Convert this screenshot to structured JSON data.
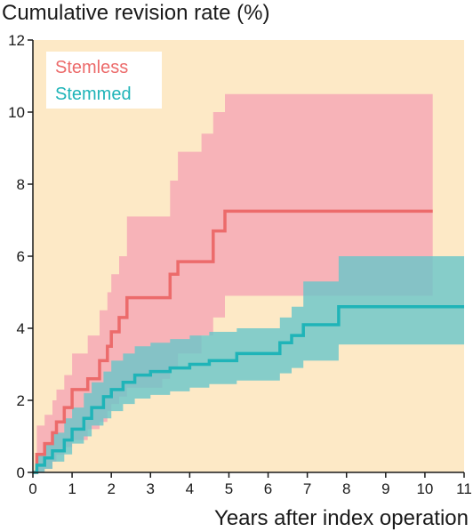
{
  "chart_data": {
    "type": "line",
    "title": "Cumulative revision rate (%)",
    "xlabel": "Years after index operation",
    "ylabel": "",
    "xlim": [
      0,
      11
    ],
    "ylim": [
      0,
      12
    ],
    "xticks": [
      "0",
      "1",
      "2",
      "3",
      "4",
      "5",
      "6",
      "7",
      "8",
      "9",
      "10",
      "11"
    ],
    "yticks": [
      "0",
      "2",
      "4",
      "6",
      "8",
      "10",
      "12"
    ],
    "grid": false,
    "legend": "top-left",
    "background_color": "#fde9c6",
    "series": [
      {
        "name": "Stemless",
        "color": "#ec6b6b",
        "band_color": "#f7b3b8",
        "step": true,
        "x": [
          0,
          0.1,
          0.3,
          0.5,
          0.6,
          0.8,
          1.0,
          1.4,
          1.7,
          1.9,
          2.0,
          2.2,
          2.4,
          3.3,
          3.5,
          3.7,
          4.3,
          4.6,
          4.9,
          10.2
        ],
        "y": [
          0,
          0.5,
          0.8,
          1.1,
          1.4,
          1.8,
          2.3,
          2.6,
          3.1,
          3.5,
          3.9,
          4.3,
          4.85,
          4.85,
          5.5,
          5.85,
          5.85,
          6.7,
          7.25,
          7.25
        ],
        "lower": [
          0,
          0,
          0.1,
          0.3,
          0.5,
          0.7,
          0.9,
          1.2,
          1.4,
          1.7,
          1.9,
          2.1,
          2.35,
          2.6,
          2.9,
          3.3,
          3.8,
          4.3,
          4.9,
          5.0
        ],
        "upper": [
          0,
          1.3,
          1.6,
          2.0,
          2.3,
          2.7,
          3.3,
          3.8,
          4.5,
          5.0,
          5.5,
          6.0,
          7.1,
          7.1,
          8.1,
          8.9,
          9.4,
          10.0,
          10.5,
          10.5
        ]
      },
      {
        "name": "Stemmed",
        "color": "#1fb4b8",
        "band_color": "#68c6c9",
        "step": true,
        "x": [
          0,
          0.1,
          0.3,
          0.5,
          0.8,
          1.0,
          1.3,
          1.5,
          1.8,
          2.0,
          2.3,
          2.6,
          3.0,
          3.5,
          4.0,
          4.5,
          5.2,
          6.3,
          6.6,
          6.9,
          7.8,
          11.0
        ],
        "y": [
          0,
          0.2,
          0.4,
          0.6,
          0.9,
          1.2,
          1.5,
          1.8,
          2.1,
          2.3,
          2.5,
          2.7,
          2.8,
          2.9,
          3.0,
          3.1,
          3.3,
          3.6,
          3.8,
          4.1,
          4.6,
          4.6
        ],
        "lower": [
          0,
          0,
          0.1,
          0.3,
          0.5,
          0.8,
          1.0,
          1.3,
          1.5,
          1.7,
          1.9,
          2.05,
          2.15,
          2.25,
          2.35,
          2.45,
          2.55,
          2.75,
          2.9,
          3.1,
          3.55,
          3.55
        ],
        "upper": [
          0,
          0.5,
          0.8,
          1.1,
          1.5,
          1.8,
          2.2,
          2.5,
          2.8,
          3.1,
          3.3,
          3.5,
          3.6,
          3.7,
          3.8,
          3.9,
          4.0,
          4.3,
          4.6,
          5.3,
          6.0,
          6.0
        ]
      }
    ]
  }
}
